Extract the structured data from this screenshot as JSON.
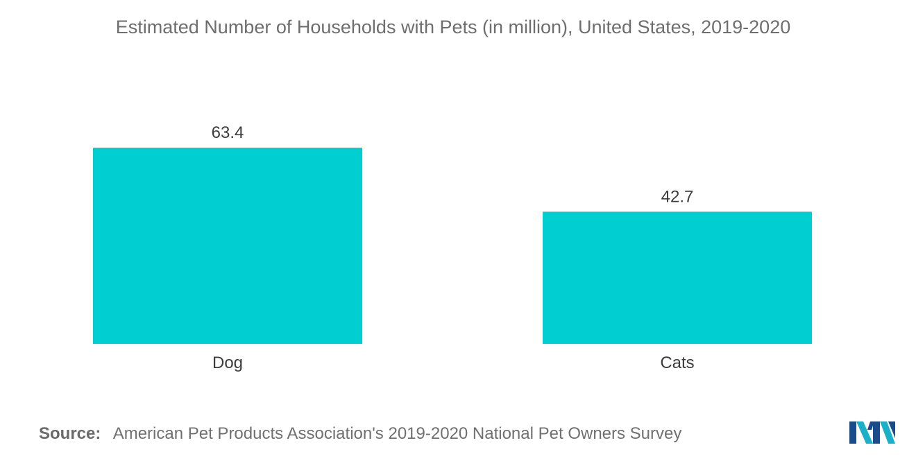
{
  "chart_data": {
    "type": "bar",
    "title": "Estimated Number of Households with Pets (in million), United States, 2019-2020",
    "categories": [
      "Dog",
      "Cats"
    ],
    "values": [
      63.4,
      42.7
    ],
    "value_labels": [
      "63.4",
      "42.7"
    ],
    "xlabel": "",
    "ylabel": "",
    "ylim": [
      0,
      63.4
    ],
    "grid": false,
    "legend": "none",
    "bar_color": "#00CED1"
  },
  "source": {
    "label": "Source:",
    "text": "American Pet Products Association's 2019-2020 National Pet Owners Survey"
  },
  "logo": {
    "icon": "mordor-intelligence-logo-icon",
    "colors": [
      "#1a4c8c",
      "#1ab1c8"
    ]
  }
}
